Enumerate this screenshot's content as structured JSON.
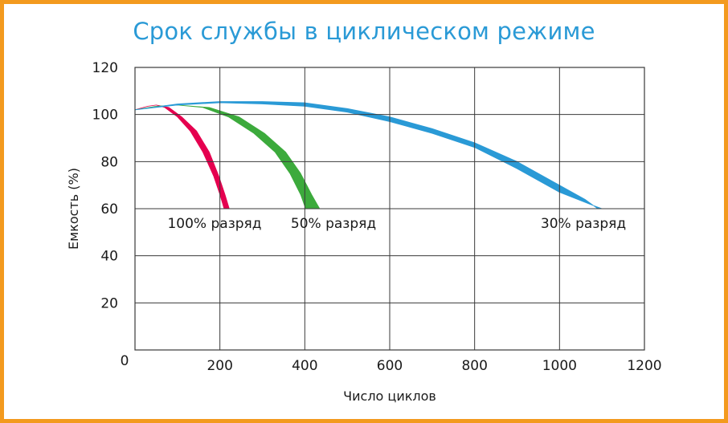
{
  "chart_data": {
    "type": "area",
    "title": "Срок службы в циклическом режиме",
    "xlabel": "Число циклов",
    "ylabel": "Емкость (%)",
    "xlim": [
      0,
      1200
    ],
    "ylim": [
      0,
      120
    ],
    "x_ticks": [
      "200",
      "400",
      "600",
      "800",
      "1000",
      "1200"
    ],
    "y_ticks": [
      "20",
      "40",
      "60",
      "80",
      "100",
      "120"
    ],
    "origin_label": "0",
    "grid": true,
    "series": [
      {
        "name": "100% разряд",
        "color": "#e5004f",
        "upper": [
          [
            0,
            102
          ],
          [
            30,
            103.5
          ],
          [
            50,
            104
          ],
          [
            70,
            103
          ],
          [
            100,
            99
          ],
          [
            130,
            93
          ],
          [
            160,
            84
          ],
          [
            185,
            74
          ],
          [
            200,
            66
          ],
          [
            210,
            60
          ]
        ],
        "lower": [
          [
            0,
            102
          ],
          [
            30,
            103.5
          ],
          [
            50,
            104
          ],
          [
            80,
            103
          ],
          [
            110,
            99
          ],
          [
            145,
            93
          ],
          [
            175,
            84
          ],
          [
            197,
            74
          ],
          [
            212,
            66
          ],
          [
            222,
            60
          ]
        ]
      },
      {
        "name": "50% разряд",
        "color": "#3caa3c",
        "upper": [
          [
            0,
            102
          ],
          [
            50,
            103.5
          ],
          [
            100,
            104
          ],
          [
            160,
            103
          ],
          [
            220,
            99
          ],
          [
            280,
            92
          ],
          [
            330,
            84
          ],
          [
            365,
            75
          ],
          [
            390,
            66
          ],
          [
            402,
            60
          ]
        ],
        "lower": [
          [
            0,
            102
          ],
          [
            50,
            103.5
          ],
          [
            100,
            104
          ],
          [
            175,
            103
          ],
          [
            245,
            99
          ],
          [
            305,
            92
          ],
          [
            355,
            84
          ],
          [
            390,
            75
          ],
          [
            416,
            66
          ],
          [
            435,
            60
          ]
        ]
      },
      {
        "name": "30% разряд",
        "color": "#2a9ad6",
        "upper": [
          [
            0,
            102
          ],
          [
            100,
            104.5
          ],
          [
            200,
            105.5
          ],
          [
            300,
            105.5
          ],
          [
            400,
            105
          ],
          [
            500,
            102.5
          ],
          [
            600,
            99
          ],
          [
            700,
            94
          ],
          [
            800,
            88
          ],
          [
            900,
            80
          ],
          [
            1000,
            70
          ],
          [
            1060,
            64
          ],
          [
            1090,
            60
          ]
        ],
        "lower": [
          [
            0,
            102
          ],
          [
            100,
            104
          ],
          [
            200,
            105
          ],
          [
            300,
            104.5
          ],
          [
            400,
            103.5
          ],
          [
            500,
            101
          ],
          [
            600,
            97
          ],
          [
            700,
            92
          ],
          [
            800,
            86
          ],
          [
            900,
            77
          ],
          [
            1000,
            67
          ],
          [
            1070,
            62
          ],
          [
            1100,
            60
          ]
        ]
      }
    ],
    "annotations": [
      "100% разряд",
      "50% разряд",
      "30% разряд"
    ]
  }
}
